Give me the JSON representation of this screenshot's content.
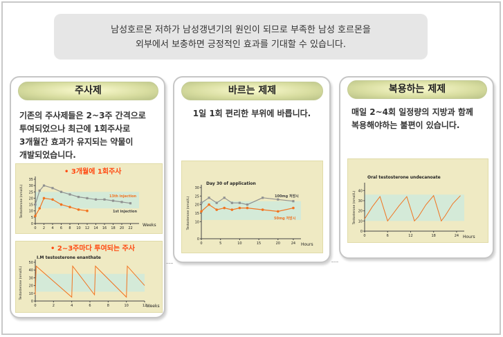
{
  "intro": {
    "line1": "남성호르몬 저하가 남성갱년기의 원인이 되므로 부족한 남성 호르몬을",
    "line2": "외부에서 보충하면 긍정적인 효과를 기대할 수 있습니다."
  },
  "panels": [
    {
      "title": "주사제",
      "desc": [
        "기존의 주사제들은 2~3주 간격으로",
        "투여되었으나 최근에 1회주사로",
        "3개월간 효과가 유지되는 약물이",
        "개발되었습니다."
      ]
    },
    {
      "title": "바르는 제제",
      "desc": [
        "1일 1회 편리한 부위에 바릅니다."
      ]
    },
    {
      "title": "복용하는 제제",
      "desc": [
        "매일 2~4회 일정량의 지방과 함께",
        "복용해야하는 불편이 있습니다."
      ]
    }
  ],
  "charts": {
    "inj3m": {
      "headline": "• 3개월에 1회주사",
      "ylabel": "Testosterone (nmol/L)",
      "yticks": [
        "0",
        "5",
        "10",
        "15",
        "20",
        "25",
        "30",
        "35"
      ],
      "xticks": [
        "0",
        "2",
        "4",
        "6",
        "8",
        "10",
        "12",
        "14",
        "16",
        "18",
        "20",
        "22"
      ],
      "xunit": "Weeks",
      "series_labels": [
        "13th injection",
        "1st injection"
      ]
    },
    "inj2w": {
      "headline": "• 2~3주마다 투여되는 주사",
      "subtitle": "I.M testosterone enanthate",
      "ylabel": "Testosterone (nmol/L)",
      "yticks": [
        "0",
        "10",
        "20",
        "30",
        "40",
        "50"
      ],
      "xticks": [
        "0",
        "2",
        "4",
        "6",
        "8",
        "10",
        "12"
      ],
      "xunit": "Weeks"
    },
    "gel": {
      "subtitle": "Day 30 of application",
      "ylabel": "Testosterone (nmol/L)",
      "yticks": [
        "0",
        "10",
        "15",
        "20",
        "25",
        "30"
      ],
      "xticks": [
        "0",
        "5",
        "10",
        "15",
        "20",
        "24"
      ],
      "xunit": "Hours",
      "series_labels": [
        "100mg 처방시",
        "50mg 처방시"
      ]
    },
    "oral": {
      "subtitle": "Oral testosterone undecanoate",
      "ylabel": "Testosterone (nmol/L)",
      "yticks": [
        "0",
        "10",
        "20",
        "30",
        "40"
      ],
      "xticks": [
        "0",
        "6",
        "12",
        "18",
        "24"
      ],
      "xunit": "Hours"
    }
  },
  "chart_data": [
    {
      "type": "line",
      "title": "• 3개월에 1회주사",
      "xlabel": "Weeks",
      "ylabel": "Testosterone (nmol/L)",
      "xlim": [
        0,
        24
      ],
      "ylim": [
        0,
        35
      ],
      "series": [
        {
          "name": "13th injection",
          "x": [
            0,
            1,
            2,
            4,
            6,
            8,
            10,
            12,
            14,
            16,
            18,
            20,
            22
          ],
          "y": [
            15,
            26,
            30,
            28,
            25,
            23,
            21,
            20,
            19,
            19,
            18,
            17,
            16
          ]
        },
        {
          "name": "1st injection",
          "x": [
            0,
            1,
            2,
            4,
            6,
            8,
            10,
            12
          ],
          "y": [
            6,
            12,
            20,
            19,
            15,
            13,
            11,
            10
          ]
        }
      ]
    },
    {
      "type": "line",
      "title": "• 2~3주마다 투여되는 주사",
      "subtitle": "I.M testosterone enanthate",
      "xlabel": "Weeks",
      "ylabel": "Testosterone (nmol/L)",
      "xlim": [
        0,
        12
      ],
      "ylim": [
        0,
        50
      ],
      "series": [
        {
          "x": [
            0,
            0.1,
            4,
            4.1,
            6.5,
            6.6,
            10,
            10.1,
            12
          ],
          "y": [
            8,
            45,
            5,
            45,
            8,
            45,
            5,
            45,
            20
          ]
        }
      ]
    },
    {
      "type": "line",
      "title": "Day 30 of application",
      "xlabel": "Hours",
      "ylabel": "Testosterone (nmol/L)",
      "xlim": [
        0,
        26
      ],
      "ylim": [
        0,
        30
      ],
      "series": [
        {
          "name": "100mg 처방시",
          "x": [
            0,
            2,
            4,
            6,
            8,
            10,
            12,
            16,
            20,
            24
          ],
          "y": [
            21,
            24,
            21,
            24,
            21,
            21,
            20,
            24,
            23,
            22
          ]
        },
        {
          "name": "50mg 처방시",
          "x": [
            0,
            2,
            4,
            6,
            8,
            10,
            12,
            16,
            20,
            24
          ],
          "y": [
            16,
            20,
            17,
            18,
            17,
            18,
            18,
            17,
            16,
            18
          ]
        }
      ]
    },
    {
      "type": "line",
      "title": "Oral testosterone undecanoate",
      "xlabel": "Hours",
      "ylabel": "Testosterone (nmol/L)",
      "xlim": [
        0,
        26
      ],
      "ylim": [
        0,
        45
      ],
      "series": [
        {
          "x": [
            0,
            2,
            4,
            6,
            7,
            9,
            11,
            13,
            14,
            16,
            18,
            20,
            21,
            23,
            25
          ],
          "y": [
            12,
            24,
            34,
            10,
            15,
            25,
            34,
            10,
            14,
            26,
            35,
            10,
            15,
            27,
            35
          ]
        }
      ]
    }
  ],
  "colors": {
    "pill": "#dfe3a9",
    "chart_bg": "#efeac3",
    "band": "#cfeadc",
    "orange": "#f2731f",
    "gray_line": "#8f9090",
    "headline": "#ff4a12"
  }
}
